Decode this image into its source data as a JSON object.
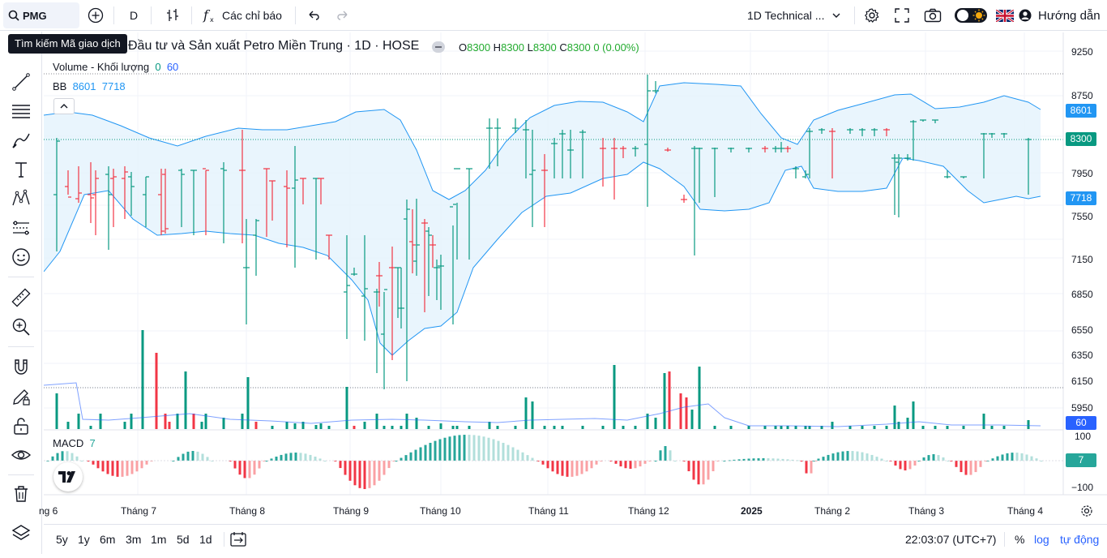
{
  "toolbar": {
    "symbol": "PMG",
    "interval": "D",
    "indicators_label": "Các chỉ báo",
    "layout_name": "1D Technical ...",
    "guide_label": "Hướng dẫn"
  },
  "tooltip": "Tìm kiếm Mã giao dịch",
  "legend": {
    "title": "Đầu tư và Sản xuất Petro Miền Trung · 1D · HOSE",
    "ohlc": {
      "o_label": "O",
      "o": "8300",
      "h_label": "H",
      "h": "8300",
      "l_label": "L",
      "l": "8300",
      "c_label": "C",
      "c": "8300",
      "change": "0 (0.00%)"
    },
    "volume_label": "Volume - Khối lượng",
    "volume_v1": "0",
    "volume_v2": "60",
    "bb_label": "BB",
    "bb_upper": "8601",
    "bb_lower": "7718",
    "macd_label": "MACD",
    "macd_value": "7"
  },
  "price_axis": [
    "9250",
    "8750",
    "8300",
    "7950",
    "7550",
    "7150",
    "6850",
    "6550",
    "6350",
    "6150",
    "5950"
  ],
  "price_tags": {
    "bb_upper": "8601",
    "last": "8300",
    "bb_lower": "7718",
    "volume": "60",
    "macd": "7"
  },
  "macd_axis": [
    "100",
    "−100"
  ],
  "time_axis": [
    "ng 6",
    "Tháng 7",
    "Tháng 8",
    "Tháng 9",
    "Tháng 10",
    "Tháng 11",
    "Tháng 12",
    "2025",
    "Tháng 2",
    "Tháng 3",
    "Tháng 4"
  ],
  "ranges": [
    "5y",
    "1y",
    "6m",
    "3m",
    "1m",
    "5d",
    "1d"
  ],
  "clock": "22:03:07 (UTC+7)",
  "scale_options": {
    "percent": "%",
    "log": "log",
    "auto": "tự động"
  },
  "colors": {
    "up": "#089981",
    "down": "#f23645",
    "bb_line": "#2196f3",
    "bb_fill": "#e3f2fd",
    "accent": "#2962ff",
    "macd_tag": "#26a69a"
  },
  "chart_data": {
    "type": "bar",
    "series_type": "ohlc",
    "last_close": 8300,
    "bollinger": {
      "upper": 8601,
      "lower": 7718
    },
    "volume_last": 60,
    "macd_last": 7,
    "y_range": [
      5900,
      9300
    ]
  }
}
